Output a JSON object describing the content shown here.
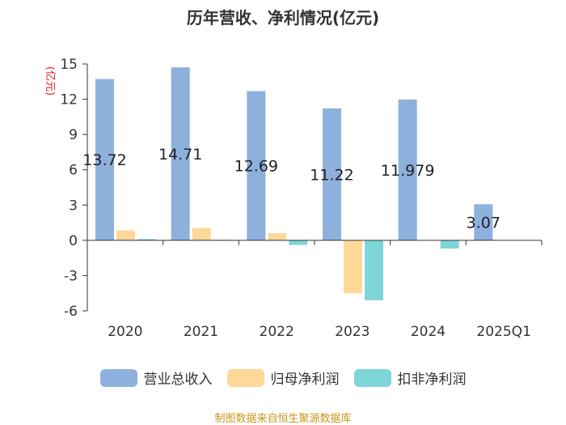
{
  "colors": {
    "revenue": "#8EB0DD",
    "net_profit": "#FFD899",
    "deducted_profit": "#7FD6D8",
    "axis": "#333333",
    "unit": "#E02020",
    "source": "#C8961E"
  },
  "chart_data": {
    "type": "bar",
    "title": "历年营收、净利情况(亿元)",
    "ylabel": "(亿元)",
    "ylim": [
      -6,
      15
    ],
    "yticks": [
      15,
      12,
      9,
      6,
      3,
      0,
      -3,
      -6
    ],
    "categories": [
      "2020",
      "2021",
      "2022",
      "2023",
      "2024",
      "2025Q1"
    ],
    "series": [
      {
        "name": "营业总收入",
        "values": [
          13.72,
          14.71,
          12.69,
          11.22,
          11.979,
          3.07
        ]
      },
      {
        "name": "归母净利润",
        "values": [
          0.85,
          1.05,
          0.6,
          -4.5,
          0.02,
          0.02
        ]
      },
      {
        "name": "扣非净利润",
        "values": [
          0.1,
          0.05,
          -0.4,
          -5.1,
          -0.7,
          0.02
        ]
      }
    ],
    "data_labels": [
      "13.72",
      "14.71",
      "12.69",
      "11.22",
      "11.979",
      "3.07"
    ],
    "legend": [
      "营业总收入",
      "归母净利润",
      "扣非净利润"
    ],
    "source": "制图数据来自恒生聚源数据库"
  }
}
